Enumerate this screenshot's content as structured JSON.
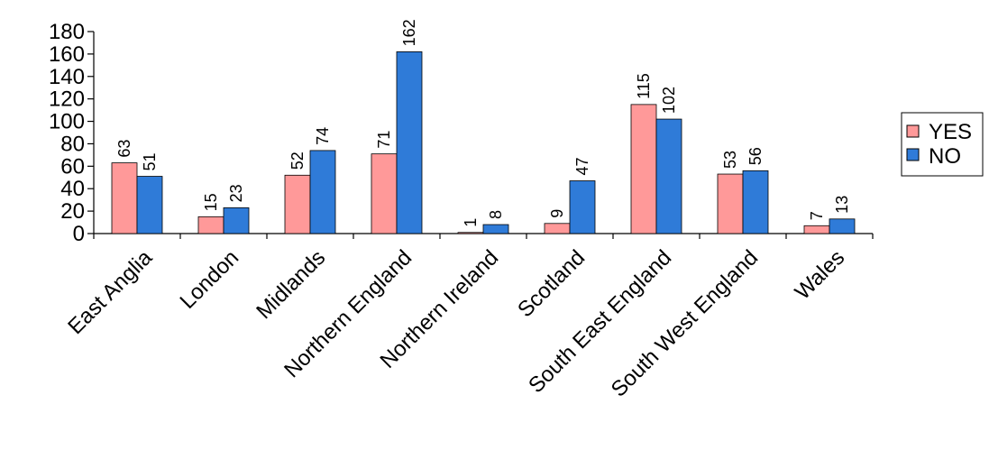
{
  "chart_data": {
    "type": "bar",
    "title": "",
    "xlabel": "",
    "ylabel": "",
    "categories": [
      "East Anglia",
      "London",
      "Midlands",
      "Northern England",
      "Northern Ireland",
      "Scotland",
      "South East England",
      "South West England",
      "Wales"
    ],
    "series": [
      {
        "name": "YES",
        "color": "#FF9999",
        "values": [
          63,
          15,
          52,
          71,
          1,
          9,
          115,
          53,
          7
        ]
      },
      {
        "name": "NO",
        "color": "#2F7BD8",
        "values": [
          51,
          23,
          74,
          162,
          8,
          47,
          102,
          56,
          13
        ]
      }
    ],
    "ylim": [
      0,
      180
    ],
    "yticks": [
      0,
      20,
      40,
      60,
      80,
      100,
      120,
      140,
      160,
      180
    ],
    "grid": false,
    "legend_position": "right",
    "data_labels": true
  }
}
